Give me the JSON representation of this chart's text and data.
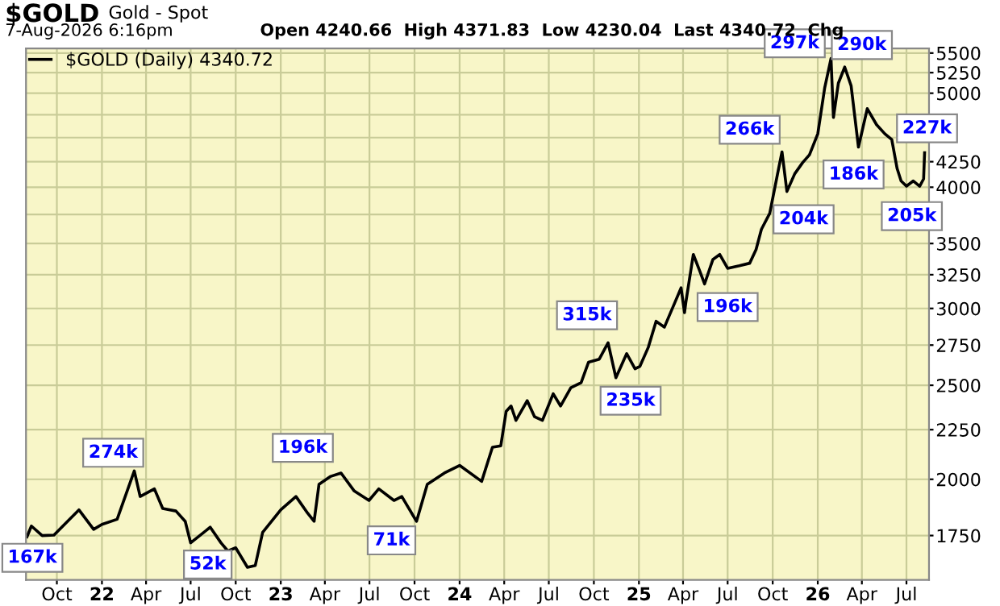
{
  "chart_data": {
    "type": "line",
    "title": "$GOLD",
    "subtitle": "Gold - Spot",
    "annotations": [
      "7-Aug-2026 6:16pm",
      "Open 4240.66  High 4371.83  Low 4230.04  Last 4340.72  Chg",
      {
        "text": "167k",
        "x": "2021-08-12",
        "y": 1660
      },
      {
        "text": "274k",
        "x": "2022-01-24",
        "y": 2130
      },
      {
        "text": "52k",
        "x": "2022-08-05",
        "y": 1634
      },
      {
        "text": "196k",
        "x": "2023-02-15",
        "y": 2155
      },
      {
        "text": "71k",
        "x": "2023-08-15",
        "y": 1730
      },
      {
        "text": "315k",
        "x": "2024-09-17",
        "y": 2952
      },
      {
        "text": "235k",
        "x": "2024-12-15",
        "y": 2410
      },
      {
        "text": "196k",
        "x": "2025-07-01",
        "y": 3010
      },
      {
        "text": "266k",
        "x": "2025-08-15",
        "y": 4585
      },
      {
        "text": "204k",
        "x": "2025-12-03",
        "y": 3707
      },
      {
        "text": "297k",
        "x": "2025-11-15",
        "y": 5628
      },
      {
        "text": "290k",
        "x": "2026-04-01",
        "y": 5606
      },
      {
        "text": "186k",
        "x": "2026-03-15",
        "y": 4123
      },
      {
        "text": "227k",
        "x": "2026-08-12",
        "y": 4600
      },
      {
        "text": "205k",
        "x": "2026-07-12",
        "y": 3735
      }
    ],
    "series": [
      {
        "name": "$GOLD (Daily) 4340.72",
        "color": "#000000",
        "x": [
          "2021-08-01",
          "2021-08-10",
          "2021-09-01",
          "2021-09-25",
          "2021-11-15",
          "2021-12-15",
          "2022-01-01",
          "2022-02-01",
          "2022-03-08",
          "2022-03-20",
          "2022-04-18",
          "2022-05-05",
          "2022-06-01",
          "2022-06-20",
          "2022-07-01",
          "2022-08-10",
          "2022-09-01",
          "2022-09-15",
          "2022-10-01",
          "2022-10-25",
          "2022-11-10",
          "2022-11-25",
          "2023-01-01",
          "2023-02-01",
          "2023-02-25",
          "2023-03-10",
          "2023-03-20",
          "2023-04-13",
          "2023-05-04",
          "2023-05-31",
          "2023-06-30",
          "2023-07-20",
          "2023-08-20",
          "2023-09-05",
          "2023-10-05",
          "2023-10-27",
          "2023-12-01",
          "2024-01-01",
          "2024-02-15",
          "2024-03-08",
          "2024-03-25",
          "2024-04-05",
          "2024-04-15",
          "2024-04-25",
          "2024-05-18",
          "2024-06-02",
          "2024-06-18",
          "2024-07-10",
          "2024-07-25",
          "2024-08-15",
          "2024-09-05",
          "2024-09-20",
          "2024-10-12",
          "2024-10-30",
          "2024-11-15",
          "2024-12-07",
          "2024-12-24",
          "2025-01-03",
          "2025-01-20",
          "2025-02-05",
          "2025-02-22",
          "2025-03-15",
          "2025-03-28",
          "2025-04-04",
          "2025-04-07",
          "2025-04-22",
          "2025-05-05",
          "2025-05-15",
          "2025-06-01",
          "2025-06-15",
          "2025-07-01",
          "2025-07-25",
          "2025-08-15",
          "2025-08-28",
          "2025-09-08",
          "2025-09-25",
          "2025-10-13",
          "2025-10-20",
          "2025-10-30",
          "2025-11-15",
          "2025-12-01",
          "2025-12-15",
          "2026-01-01",
          "2026-01-15",
          "2026-01-28",
          "2026-02-02",
          "2026-02-12",
          "2026-02-25",
          "2026-03-10",
          "2026-03-25",
          "2026-04-12",
          "2026-05-01",
          "2026-05-18",
          "2026-06-01",
          "2026-06-12",
          "2026-06-20",
          "2026-07-01",
          "2026-07-15",
          "2026-07-28",
          "2026-08-05",
          "2026-08-07"
        ],
        "values": [
          1745,
          1790,
          1750,
          1752,
          1860,
          1776,
          1797,
          1819,
          2040,
          1920,
          1955,
          1866,
          1855,
          1810,
          1720,
          1785,
          1720,
          1687,
          1700,
          1623,
          1630,
          1763,
          1860,
          1920,
          1845,
          1810,
          1976,
          2014,
          2030,
          1945,
          1902,
          1955,
          1902,
          1920,
          1810,
          1976,
          2030,
          2067,
          1990,
          2158,
          2165,
          2350,
          2380,
          2300,
          2410,
          2320,
          2300,
          2450,
          2380,
          2485,
          2515,
          2640,
          2660,
          2765,
          2545,
          2695,
          2600,
          2615,
          2735,
          2910,
          2870,
          3040,
          3150,
          2970,
          3050,
          3410,
          3280,
          3180,
          3370,
          3410,
          3300,
          3320,
          3340,
          3450,
          3620,
          3760,
          4180,
          4350,
          3960,
          4130,
          4240,
          4320,
          4540,
          5060,
          5430,
          4720,
          5120,
          5320,
          5090,
          4400,
          4820,
          4640,
          4540,
          4480,
          4180,
          4060,
          4010,
          4060,
          4010,
          4080,
          4341
        ]
      }
    ],
    "log": "y",
    "legend": "top left",
    "grid": true,
    "line_style": "solid",
    "marker": "none",
    "xlim": [
      "2021-07-30",
      "2026-08-16"
    ],
    "xticks": [
      {
        "value": "2021-10-01",
        "label": "Oct"
      },
      {
        "value": "2022-01-01",
        "label": "22"
      },
      {
        "value": "2022-04-01",
        "label": "Apr"
      },
      {
        "value": "2022-07-01",
        "label": "Jul"
      },
      {
        "value": "2022-10-01",
        "label": "Oct"
      },
      {
        "value": "2023-01-01",
        "label": "23"
      },
      {
        "value": "2023-04-01",
        "label": "Apr"
      },
      {
        "value": "2023-07-01",
        "label": "Jul"
      },
      {
        "value": "2023-10-01",
        "label": "Oct"
      },
      {
        "value": "2024-01-01",
        "label": "24"
      },
      {
        "value": "2024-04-01",
        "label": "Apr"
      },
      {
        "value": "2024-07-01",
        "label": "Jul"
      },
      {
        "value": "2024-10-01",
        "label": "Oct"
      },
      {
        "value": "2025-01-01",
        "label": "25"
      },
      {
        "value": "2025-04-01",
        "label": "Apr"
      },
      {
        "value": "2025-07-01",
        "label": "Jul"
      },
      {
        "value": "2025-10-01",
        "label": "Oct"
      },
      {
        "value": "2026-01-01",
        "label": "26"
      },
      {
        "value": "2026-04-01",
        "label": "Apr"
      },
      {
        "value": "2026-07-01",
        "label": "Jul"
      }
    ],
    "ylim": [
      1575,
      5560
    ],
    "yticks": [
      1750,
      2000,
      2250,
      2500,
      2750,
      3000,
      3250,
      3500,
      {
        "value": 3750,
        "label": null
      },
      4000,
      4250,
      {
        "value": 4500,
        "label": null
      },
      {
        "value": 4750,
        "label": null
      },
      5000,
      5250,
      5500
    ]
  }
}
